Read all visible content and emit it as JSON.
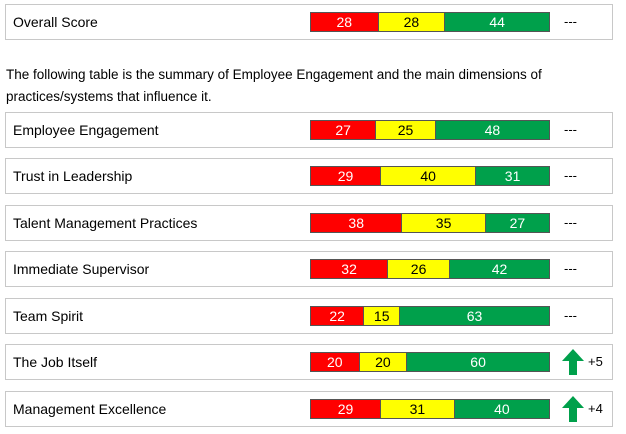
{
  "overall": {
    "label": "Overall Score",
    "red": 28,
    "yellow": 28,
    "green": 44,
    "change": "---"
  },
  "intro_text": "The following table is the summary of Employee Engagement and the main dimensions of practices/systems that influence it.",
  "dimensions": [
    {
      "label": "Employee Engagement",
      "red": 27,
      "yellow": 25,
      "green": 48,
      "change": "---",
      "trend": ""
    },
    {
      "label": "Trust in Leadership",
      "red": 29,
      "yellow": 40,
      "green": 31,
      "change": "---",
      "trend": ""
    },
    {
      "label": "Talent Management Practices",
      "red": 38,
      "yellow": 35,
      "green": 27,
      "change": "---",
      "trend": ""
    },
    {
      "label": "Immediate Supervisor",
      "red": 32,
      "yellow": 26,
      "green": 42,
      "change": "---",
      "trend": ""
    },
    {
      "label": "Team Spirit",
      "red": 22,
      "yellow": 15,
      "green": 63,
      "change": "---",
      "trend": ""
    },
    {
      "label": "The Job Itself",
      "red": 20,
      "yellow": 20,
      "green": 60,
      "change": "+5",
      "trend": "up-arrow-icon"
    },
    {
      "label": "Management Excellence",
      "red": 29,
      "yellow": 31,
      "green": 40,
      "change": "+4",
      "trend": "up-arrow-icon"
    }
  ],
  "colors": {
    "unfavorable": "#ff0000",
    "neutral": "#ffff00",
    "favorable": "#00a04b",
    "trend_up": "#00a04b"
  }
}
